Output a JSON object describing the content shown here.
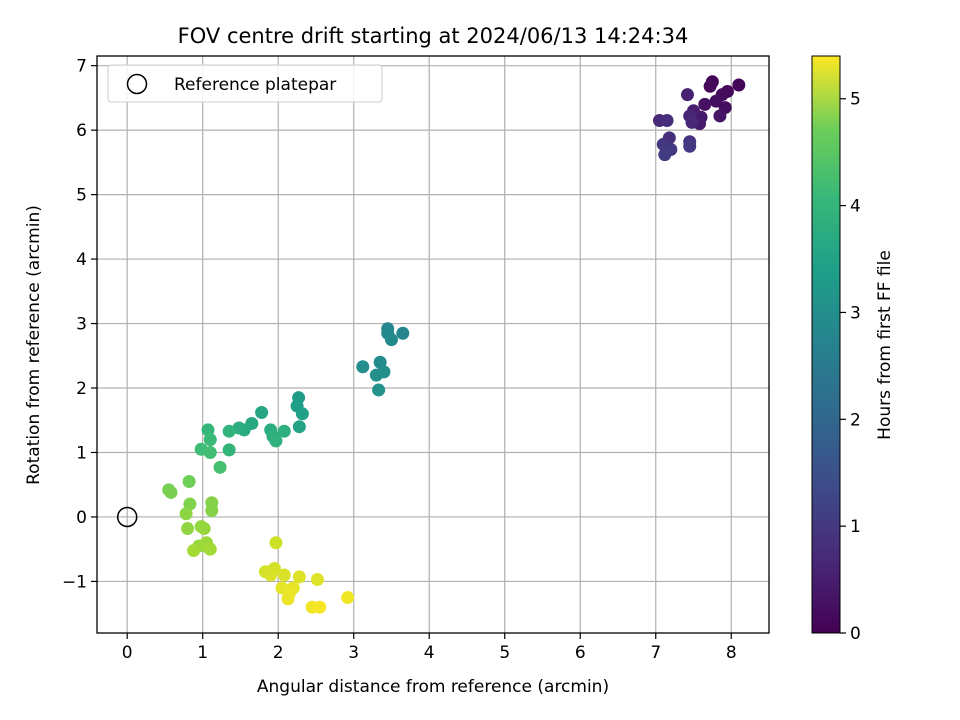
{
  "chart_data": {
    "type": "scatter",
    "title": "FOV centre drift starting at 2024/06/13 14:24:34",
    "xlabel": "Angular distance from reference (arcmin)",
    "ylabel": "Rotation from reference (arcmin)",
    "xlim": [
      -0.4,
      8.5
    ],
    "ylim": [
      -1.8,
      7.15
    ],
    "xticks": [
      0,
      1,
      2,
      3,
      4,
      5,
      6,
      7,
      8
    ],
    "yticks": [
      -1,
      0,
      1,
      2,
      3,
      4,
      5,
      6,
      7
    ],
    "grid": true,
    "legend": {
      "placement": "top-left",
      "entries": [
        "Reference platepar"
      ]
    },
    "reference": {
      "x": 0,
      "y": 0
    },
    "colorbar": {
      "label": "Hours from first FF file",
      "range": [
        0,
        5.4
      ],
      "ticks": [
        0,
        1,
        2,
        3,
        4,
        5
      ],
      "colormap": "viridis"
    },
    "series": [
      {
        "color_by": "hours",
        "points": [
          {
            "x": 7.75,
            "y": 6.75,
            "h": 0.05
          },
          {
            "x": 8.1,
            "y": 6.7,
            "h": 0.05
          },
          {
            "x": 7.72,
            "y": 6.68,
            "h": 0.1
          },
          {
            "x": 7.95,
            "y": 6.6,
            "h": 0.1
          },
          {
            "x": 7.88,
            "y": 6.55,
            "h": 0.15
          },
          {
            "x": 7.8,
            "y": 6.45,
            "h": 0.2
          },
          {
            "x": 7.92,
            "y": 6.35,
            "h": 0.2
          },
          {
            "x": 7.65,
            "y": 6.4,
            "h": 0.25
          },
          {
            "x": 7.85,
            "y": 6.22,
            "h": 0.3
          },
          {
            "x": 7.6,
            "y": 6.2,
            "h": 0.35
          },
          {
            "x": 7.58,
            "y": 6.1,
            "h": 0.4
          },
          {
            "x": 7.5,
            "y": 6.3,
            "h": 0.45
          },
          {
            "x": 7.42,
            "y": 6.55,
            "h": 0.5
          },
          {
            "x": 7.45,
            "y": 6.22,
            "h": 0.55
          },
          {
            "x": 7.48,
            "y": 6.12,
            "h": 0.6
          },
          {
            "x": 7.05,
            "y": 6.15,
            "h": 0.65
          },
          {
            "x": 7.15,
            "y": 6.15,
            "h": 0.7
          },
          {
            "x": 7.18,
            "y": 5.88,
            "h": 0.75
          },
          {
            "x": 7.45,
            "y": 5.82,
            "h": 0.8
          },
          {
            "x": 7.1,
            "y": 5.78,
            "h": 0.85
          },
          {
            "x": 7.2,
            "y": 5.7,
            "h": 0.9
          },
          {
            "x": 7.45,
            "y": 5.75,
            "h": 0.9
          },
          {
            "x": 7.12,
            "y": 5.62,
            "h": 0.95
          },
          {
            "x": 3.45,
            "y": 2.92,
            "h": 2.5
          },
          {
            "x": 3.65,
            "y": 2.85,
            "h": 2.5
          },
          {
            "x": 3.45,
            "y": 2.85,
            "h": 2.55
          },
          {
            "x": 3.5,
            "y": 2.75,
            "h": 2.55
          },
          {
            "x": 3.35,
            "y": 2.4,
            "h": 2.6
          },
          {
            "x": 3.12,
            "y": 2.33,
            "h": 2.65
          },
          {
            "x": 3.4,
            "y": 2.25,
            "h": 2.7
          },
          {
            "x": 3.3,
            "y": 2.2,
            "h": 2.7
          },
          {
            "x": 3.33,
            "y": 1.97,
            "h": 2.75
          },
          {
            "x": 2.27,
            "y": 1.85,
            "h": 2.95
          },
          {
            "x": 2.25,
            "y": 1.72,
            "h": 3.0
          },
          {
            "x": 2.32,
            "y": 1.6,
            "h": 3.05
          },
          {
            "x": 2.28,
            "y": 1.4,
            "h": 3.1
          },
          {
            "x": 1.78,
            "y": 1.62,
            "h": 3.2
          },
          {
            "x": 1.65,
            "y": 1.45,
            "h": 3.25
          },
          {
            "x": 1.55,
            "y": 1.35,
            "h": 3.3
          },
          {
            "x": 1.48,
            "y": 1.38,
            "h": 3.35
          },
          {
            "x": 1.9,
            "y": 1.35,
            "h": 3.35
          },
          {
            "x": 2.08,
            "y": 1.33,
            "h": 3.4
          },
          {
            "x": 1.93,
            "y": 1.25,
            "h": 3.4
          },
          {
            "x": 1.97,
            "y": 1.18,
            "h": 3.45
          },
          {
            "x": 1.35,
            "y": 1.33,
            "h": 3.5
          },
          {
            "x": 1.35,
            "y": 1.04,
            "h": 3.55
          },
          {
            "x": 1.07,
            "y": 1.35,
            "h": 3.6
          },
          {
            "x": 1.1,
            "y": 1.2,
            "h": 3.65
          },
          {
            "x": 0.98,
            "y": 1.05,
            "h": 3.7
          },
          {
            "x": 1.1,
            "y": 1.0,
            "h": 3.75
          },
          {
            "x": 1.23,
            "y": 0.77,
            "h": 3.8
          },
          {
            "x": 0.82,
            "y": 0.55,
            "h": 4.2
          },
          {
            "x": 0.55,
            "y": 0.42,
            "h": 4.25
          },
          {
            "x": 0.58,
            "y": 0.38,
            "h": 4.3
          },
          {
            "x": 0.83,
            "y": 0.2,
            "h": 4.35
          },
          {
            "x": 1.12,
            "y": 0.22,
            "h": 4.4
          },
          {
            "x": 1.12,
            "y": 0.1,
            "h": 4.4
          },
          {
            "x": 0.78,
            "y": 0.05,
            "h": 4.45
          },
          {
            "x": 0.8,
            "y": -0.18,
            "h": 4.5
          },
          {
            "x": 0.98,
            "y": -0.15,
            "h": 4.5
          },
          {
            "x": 1.02,
            "y": -0.18,
            "h": 4.55
          },
          {
            "x": 0.95,
            "y": -0.45,
            "h": 4.55
          },
          {
            "x": 1.05,
            "y": -0.4,
            "h": 4.6
          },
          {
            "x": 1.08,
            "y": -0.48,
            "h": 4.6
          },
          {
            "x": 1.1,
            "y": -0.5,
            "h": 4.65
          },
          {
            "x": 0.88,
            "y": -0.52,
            "h": 4.65
          },
          {
            "x": 1.97,
            "y": -0.4,
            "h": 5.0
          },
          {
            "x": 1.95,
            "y": -0.8,
            "h": 5.05
          },
          {
            "x": 1.83,
            "y": -0.85,
            "h": 5.05
          },
          {
            "x": 1.9,
            "y": -0.9,
            "h": 5.1
          },
          {
            "x": 2.08,
            "y": -0.9,
            "h": 5.1
          },
          {
            "x": 2.28,
            "y": -0.93,
            "h": 5.15
          },
          {
            "x": 2.52,
            "y": -0.97,
            "h": 5.15
          },
          {
            "x": 2.05,
            "y": -1.1,
            "h": 5.2
          },
          {
            "x": 2.2,
            "y": -1.1,
            "h": 5.2
          },
          {
            "x": 2.15,
            "y": -1.18,
            "h": 5.25
          },
          {
            "x": 2.13,
            "y": -1.27,
            "h": 5.25
          },
          {
            "x": 2.92,
            "y": -1.25,
            "h": 5.3
          },
          {
            "x": 2.45,
            "y": -1.4,
            "h": 5.3
          },
          {
            "x": 2.55,
            "y": -1.4,
            "h": 5.35
          }
        ]
      }
    ]
  }
}
